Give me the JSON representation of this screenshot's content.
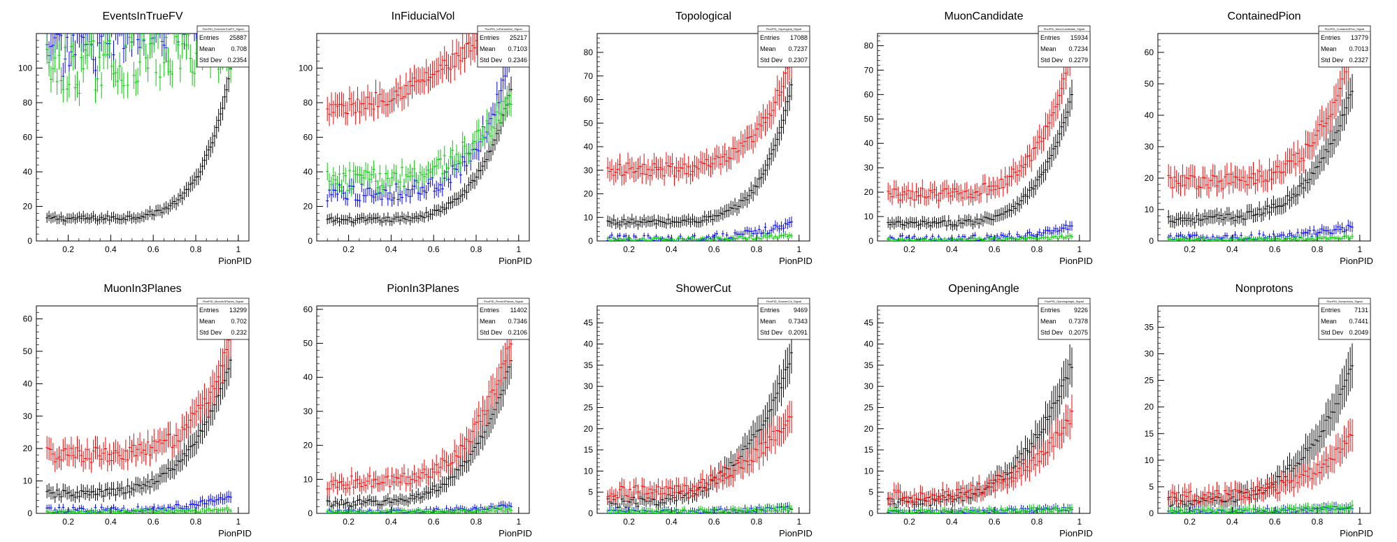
{
  "figure": {
    "series_colors": {
      "black": "#000000",
      "red": "#ff0000",
      "blue": "#0000ff",
      "green": "#00cc00"
    }
  },
  "chart_data": [
    {
      "type": "scatter",
      "title": "EventsInTrueFV",
      "xlabel": "PionPID",
      "xlim": [
        0.05,
        1.05
      ],
      "ylim": [
        0,
        120
      ],
      "yticks": [
        0,
        20,
        40,
        60,
        80,
        100
      ],
      "xticks": [
        0.2,
        0.4,
        0.6,
        0.8,
        1
      ],
      "stats": {
        "header": "PionPID_EventsInTrueFV_Signal",
        "entries": "25887",
        "mean": "0.708",
        "std_dev": "0.2354"
      },
      "series": [
        {
          "color": "black",
          "base": 13,
          "growth": 110,
          "power": 7,
          "noise": 1.5
        },
        {
          "color": "red",
          "base": 210,
          "growth": 0,
          "power": 1,
          "noise": 10
        },
        {
          "color": "blue",
          "base": 100,
          "growth": 40,
          "power": 1,
          "noise": 15
        },
        {
          "color": "green",
          "base": 95,
          "growth": 20,
          "power": 1,
          "noise": 15
        }
      ]
    },
    {
      "type": "scatter",
      "title": "InFiducialVol",
      "xlabel": "PionPID",
      "xlim": [
        0.05,
        1.05
      ],
      "ylim": [
        0,
        120
      ],
      "yticks": [
        0,
        20,
        40,
        60,
        80,
        100
      ],
      "xticks": [
        0.2,
        0.4,
        0.6,
        0.8,
        1
      ],
      "stats": {
        "header": "PionPID_InFiducialVol_Signal",
        "entries": "25217",
        "mean": "0.7103",
        "std_dev": "0.2346"
      },
      "series": [
        {
          "color": "black",
          "base": 12,
          "growth": 95,
          "power": 6,
          "noise": 1.5
        },
        {
          "color": "red",
          "base": 75,
          "growth": 60,
          "power": 2,
          "noise": 5
        },
        {
          "color": "blue",
          "base": 28,
          "growth": 100,
          "power": 6,
          "noise": 5
        },
        {
          "color": "green",
          "base": 35,
          "growth": 55,
          "power": 4,
          "noise": 6
        }
      ]
    },
    {
      "type": "scatter",
      "title": "Topological",
      "xlabel": "PionPID",
      "xlim": [
        0.05,
        1.05
      ],
      "ylim": [
        0,
        88
      ],
      "yticks": [
        0,
        10,
        20,
        30,
        40,
        50,
        60,
        70,
        80
      ],
      "xticks": [
        0.2,
        0.4,
        0.6,
        0.8,
        1
      ],
      "stats": {
        "header": "PionPID_Topological_Signal",
        "entries": "17088",
        "mean": "0.7237",
        "std_dev": "0.2307"
      },
      "series": [
        {
          "color": "black",
          "base": 8,
          "growth": 75,
          "power": 7,
          "noise": 1.2
        },
        {
          "color": "red",
          "base": 30,
          "growth": 60,
          "power": 6,
          "noise": 3
        },
        {
          "color": "blue",
          "base": 1,
          "growth": 8,
          "power": 5,
          "noise": 1.5
        },
        {
          "color": "green",
          "base": 0.5,
          "growth": 2,
          "power": 3,
          "noise": 0.8
        }
      ]
    },
    {
      "type": "scatter",
      "title": "MuonCandidate",
      "xlabel": "PionPID",
      "xlim": [
        0.05,
        1.05
      ],
      "ylim": [
        0,
        85
      ],
      "yticks": [
        0,
        10,
        20,
        30,
        40,
        50,
        60,
        70,
        80
      ],
      "xticks": [
        0.2,
        0.4,
        0.6,
        0.8,
        1
      ],
      "stats": {
        "header": "PionPID_MuonCandidate_Signal",
        "entries": "15934",
        "mean": "0.7234",
        "std_dev": "0.2279"
      },
      "series": [
        {
          "color": "black",
          "base": 7,
          "growth": 65,
          "power": 6,
          "noise": 1.2
        },
        {
          "color": "red",
          "base": 19,
          "growth": 75,
          "power": 6,
          "noise": 2.5
        },
        {
          "color": "blue",
          "base": 1,
          "growth": 6,
          "power": 5,
          "noise": 1.2
        },
        {
          "color": "green",
          "base": 0.3,
          "growth": 1.5,
          "power": 3,
          "noise": 0.6
        }
      ]
    },
    {
      "type": "scatter",
      "title": "ContainedPion",
      "xlabel": "PionPID",
      "xlim": [
        0.05,
        1.05
      ],
      "ylim": [
        0,
        66
      ],
      "yticks": [
        0,
        10,
        20,
        30,
        40,
        50,
        60
      ],
      "xticks": [
        0.2,
        0.4,
        0.6,
        0.8,
        1
      ],
      "stats": {
        "header": "PionPID_ContainedPion_Signal",
        "entries": "13779",
        "mean": "0.7013",
        "std_dev": "0.2327"
      },
      "series": [
        {
          "color": "black",
          "base": 7,
          "growth": 50,
          "power": 5,
          "noise": 1.2
        },
        {
          "color": "red",
          "base": 19,
          "growth": 55,
          "power": 6,
          "noise": 2.5
        },
        {
          "color": "blue",
          "base": 1,
          "growth": 4,
          "power": 4,
          "noise": 1
        },
        {
          "color": "green",
          "base": 0.3,
          "growth": 1,
          "power": 3,
          "noise": 0.5
        }
      ]
    },
    {
      "type": "scatter",
      "title": "MuonIn3Planes",
      "xlabel": "PionPID",
      "xlim": [
        0.05,
        1.05
      ],
      "ylim": [
        0,
        64
      ],
      "yticks": [
        0,
        10,
        20,
        30,
        40,
        50,
        60
      ],
      "xticks": [
        0.2,
        0.4,
        0.6,
        0.8,
        1
      ],
      "stats": {
        "header": "PionPID_MuonIn3Planes_Signal",
        "entries": "13299",
        "mean": "0.702",
        "std_dev": "0.232"
      },
      "series": [
        {
          "color": "black",
          "base": 6,
          "growth": 50,
          "power": 5,
          "noise": 1.2
        },
        {
          "color": "red",
          "base": 18,
          "growth": 45,
          "power": 6,
          "noise": 2.5
        },
        {
          "color": "blue",
          "base": 1,
          "growth": 5,
          "power": 5,
          "noise": 1
        },
        {
          "color": "green",
          "base": 0.3,
          "growth": 1,
          "power": 3,
          "noise": 0.5
        }
      ]
    },
    {
      "type": "scatter",
      "title": "PionIn3Planes",
      "xlabel": "PionPID",
      "xlim": [
        0.05,
        1.05
      ],
      "ylim": [
        0,
        61
      ],
      "yticks": [
        0,
        10,
        20,
        30,
        40,
        50,
        60
      ],
      "xticks": [
        0.2,
        0.4,
        0.6,
        0.8,
        1
      ],
      "stats": {
        "header": "PionPID_PionIn3Planes_Signal",
        "entries": "11402",
        "mean": "0.7346",
        "std_dev": "0.2106"
      },
      "series": [
        {
          "color": "black",
          "base": 3,
          "growth": 50,
          "power": 5,
          "noise": 1
        },
        {
          "color": "red",
          "base": 9,
          "growth": 50,
          "power": 5,
          "noise": 2
        },
        {
          "color": "blue",
          "base": 0.5,
          "growth": 2,
          "power": 4,
          "noise": 0.6
        },
        {
          "color": "green",
          "base": 0.3,
          "growth": 1,
          "power": 3,
          "noise": 0.5
        }
      ]
    },
    {
      "type": "scatter",
      "title": "ShowerCut",
      "xlabel": "PionPID",
      "xlim": [
        0.05,
        1.05
      ],
      "ylim": [
        0,
        49
      ],
      "yticks": [
        0,
        5,
        10,
        15,
        20,
        25,
        30,
        35,
        40,
        45
      ],
      "xticks": [
        0.2,
        0.4,
        0.6,
        0.8,
        1
      ],
      "stats": {
        "header": "PionPID_ShowerCut_Signal",
        "entries": "9469",
        "mean": "0.7343",
        "std_dev": "0.2091"
      },
      "series": [
        {
          "color": "black",
          "base": 2.5,
          "growth": 40,
          "power": 4,
          "noise": 1.2
        },
        {
          "color": "red",
          "base": 5,
          "growth": 22,
          "power": 4,
          "noise": 1.5
        },
        {
          "color": "blue",
          "base": 0.3,
          "growth": 1,
          "power": 3,
          "noise": 0.5
        },
        {
          "color": "green",
          "base": 0.3,
          "growth": 1,
          "power": 3,
          "noise": 0.6
        }
      ]
    },
    {
      "type": "scatter",
      "title": "OpeningAngle",
      "xlabel": "PionPID",
      "xlim": [
        0.05,
        1.05
      ],
      "ylim": [
        0,
        49
      ],
      "yticks": [
        0,
        5,
        10,
        15,
        20,
        25,
        30,
        35,
        40,
        45
      ],
      "xticks": [
        0.2,
        0.4,
        0.6,
        0.8,
        1
      ],
      "stats": {
        "header": "PionPID_OpeningAngle_Signal",
        "entries": "9226",
        "mean": "0.7378",
        "std_dev": "0.2075"
      },
      "series": [
        {
          "color": "black",
          "base": 2.5,
          "growth": 38,
          "power": 4,
          "noise": 1.2
        },
        {
          "color": "red",
          "base": 4,
          "growth": 22,
          "power": 4,
          "noise": 1.5
        },
        {
          "color": "blue",
          "base": 0.3,
          "growth": 1,
          "power": 3,
          "noise": 0.5
        },
        {
          "color": "green",
          "base": 0.3,
          "growth": 1,
          "power": 3,
          "noise": 0.6
        }
      ]
    },
    {
      "type": "scatter",
      "title": "Nonprotons",
      "xlabel": "PionPID",
      "xlim": [
        0.05,
        1.05
      ],
      "ylim": [
        0,
        39
      ],
      "yticks": [
        0,
        5,
        10,
        15,
        20,
        25,
        30,
        35
      ],
      "xticks": [
        0.2,
        0.4,
        0.6,
        0.8,
        1
      ],
      "stats": {
        "header": "PionPID_Nonprotons_Signal",
        "entries": "7131",
        "mean": "0.7441",
        "std_dev": "0.2049"
      },
      "series": [
        {
          "color": "black",
          "base": 2,
          "growth": 30,
          "power": 4,
          "noise": 1
        },
        {
          "color": "red",
          "base": 3,
          "growth": 13,
          "power": 4,
          "noise": 1.2
        },
        {
          "color": "blue",
          "base": 0.3,
          "growth": 1,
          "power": 3,
          "noise": 0.4
        },
        {
          "color": "green",
          "base": 0.3,
          "growth": 1,
          "power": 3,
          "noise": 0.5
        }
      ]
    }
  ]
}
